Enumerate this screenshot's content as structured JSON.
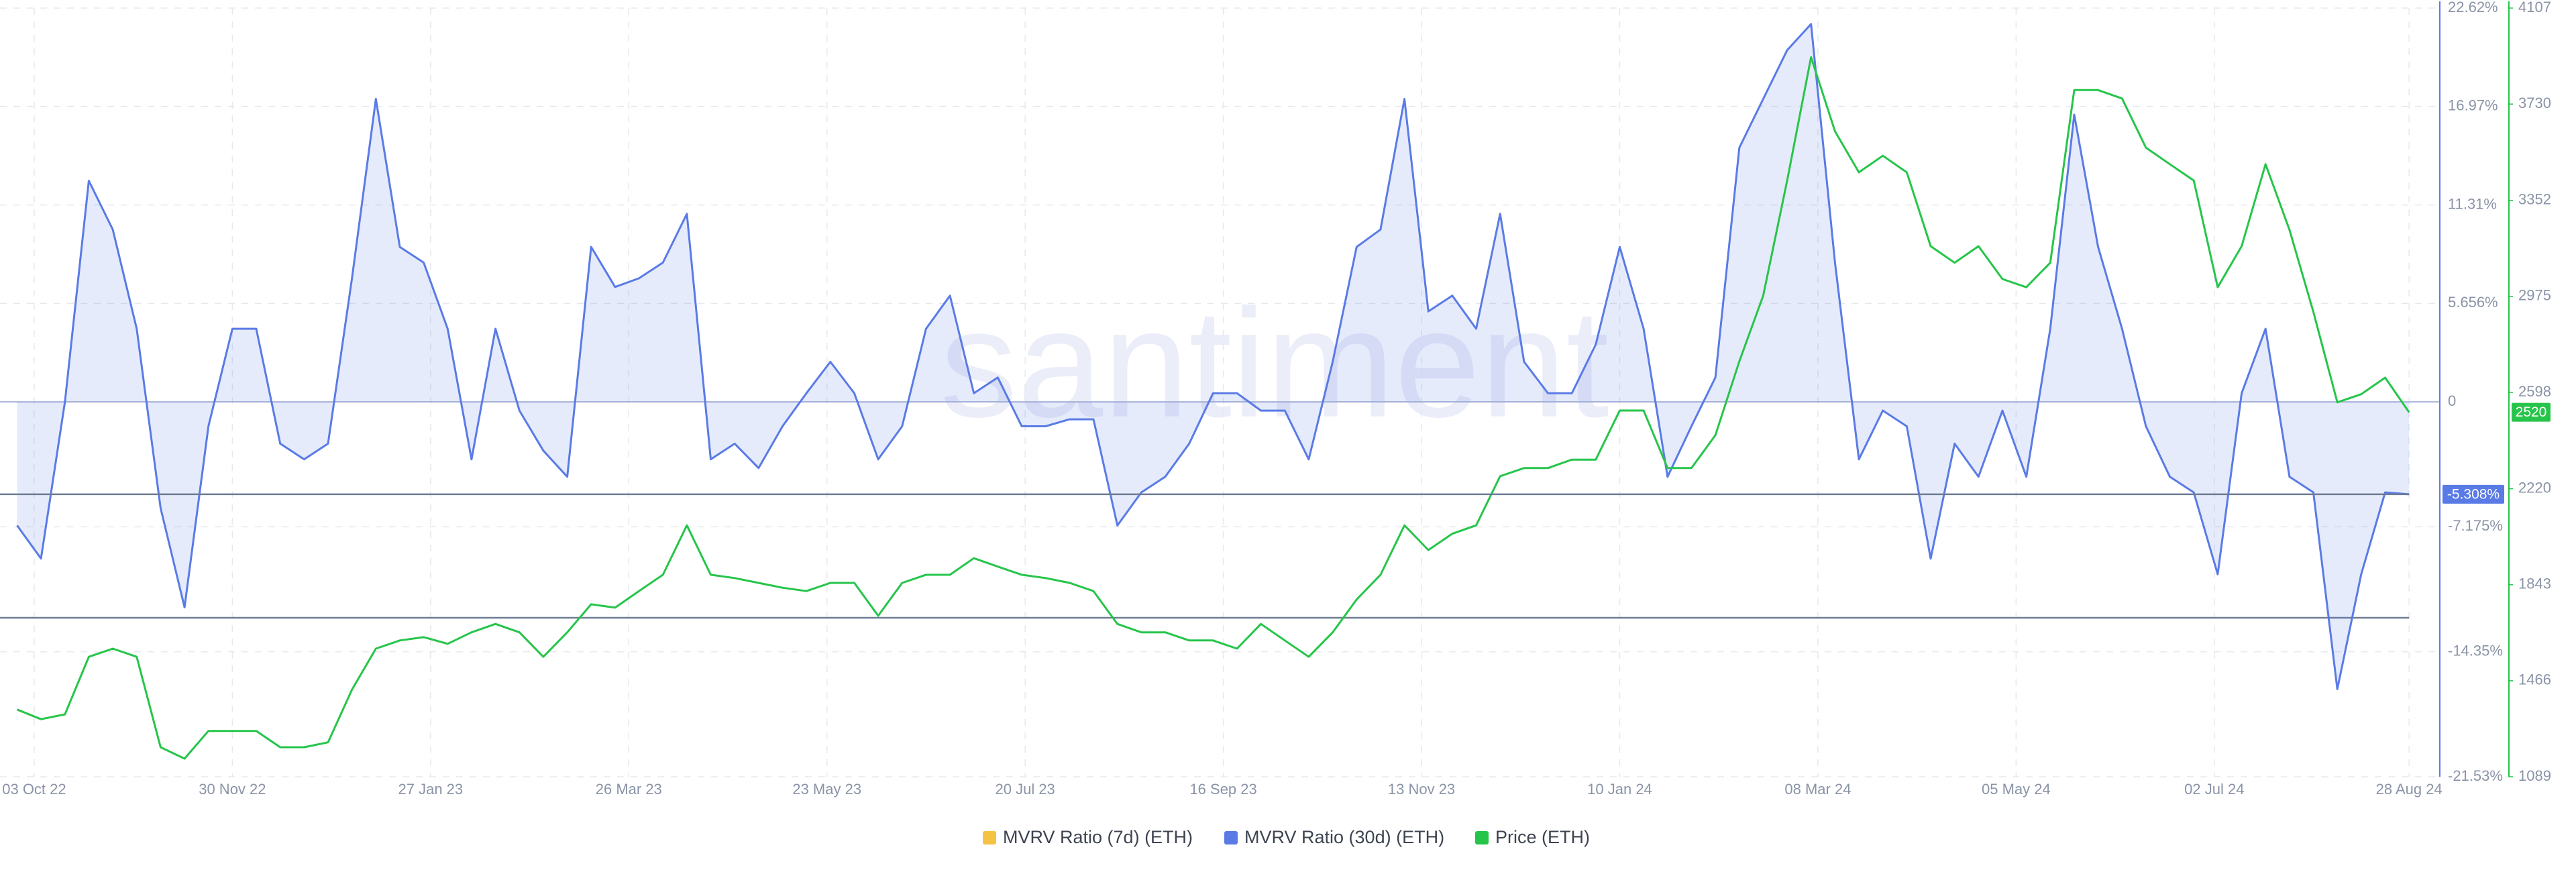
{
  "chart_data": {
    "type": "line",
    "watermark": "santiment",
    "x": [
      "2022-09-28",
      "2022-10-05",
      "2022-10-12",
      "2022-10-19",
      "2022-10-26",
      "2022-11-02",
      "2022-11-09",
      "2022-11-16",
      "2022-11-23",
      "2022-11-30",
      "2022-12-07",
      "2022-12-14",
      "2022-12-21",
      "2022-12-28",
      "2023-01-04",
      "2023-01-11",
      "2023-01-18",
      "2023-01-25",
      "2023-02-01",
      "2023-02-08",
      "2023-02-15",
      "2023-02-22",
      "2023-03-01",
      "2023-03-08",
      "2023-03-15",
      "2023-03-22",
      "2023-03-29",
      "2023-04-05",
      "2023-04-12",
      "2023-04-19",
      "2023-04-26",
      "2023-05-03",
      "2023-05-10",
      "2023-05-17",
      "2023-05-24",
      "2023-05-31",
      "2023-06-07",
      "2023-06-14",
      "2023-06-21",
      "2023-06-28",
      "2023-07-05",
      "2023-07-12",
      "2023-07-19",
      "2023-07-26",
      "2023-08-02",
      "2023-08-09",
      "2023-08-16",
      "2023-08-23",
      "2023-08-30",
      "2023-09-06",
      "2023-09-13",
      "2023-09-20",
      "2023-09-27",
      "2023-10-04",
      "2023-10-11",
      "2023-10-18",
      "2023-10-25",
      "2023-11-01",
      "2023-11-08",
      "2023-11-15",
      "2023-11-22",
      "2023-11-29",
      "2023-12-06",
      "2023-12-13",
      "2023-12-20",
      "2023-12-27",
      "2024-01-03",
      "2024-01-10",
      "2024-01-17",
      "2024-01-24",
      "2024-01-31",
      "2024-02-07",
      "2024-02-14",
      "2024-02-21",
      "2024-02-28",
      "2024-03-06",
      "2024-03-13",
      "2024-03-20",
      "2024-03-27",
      "2024-04-03",
      "2024-04-10",
      "2024-04-17",
      "2024-04-24",
      "2024-05-01",
      "2024-05-08",
      "2024-05-15",
      "2024-05-22",
      "2024-05-29",
      "2024-06-05",
      "2024-06-12",
      "2024-06-19",
      "2024-06-26",
      "2024-07-03",
      "2024-07-10",
      "2024-07-17",
      "2024-07-24",
      "2024-07-31",
      "2024-08-07",
      "2024-08-14",
      "2024-08-21",
      "2024-08-28"
    ],
    "series": [
      {
        "name": "MVRV Ratio (7d) (ETH)",
        "color": "#f5c344",
        "values": [
          null,
          null,
          null,
          null,
          null,
          null,
          null,
          null,
          null,
          null,
          null,
          null,
          null,
          null,
          null,
          null,
          null,
          null,
          null,
          null,
          null,
          null,
          null,
          null,
          null,
          null,
          null,
          null,
          null,
          null,
          null,
          null,
          null,
          null,
          null,
          null,
          null,
          null,
          null,
          null,
          null,
          null,
          null,
          null,
          null,
          null,
          null,
          null,
          null,
          null,
          null,
          null,
          null,
          null,
          null,
          null,
          null,
          null,
          null,
          null,
          null,
          null,
          null,
          null,
          null,
          null,
          null,
          null,
          null,
          null,
          null,
          null,
          null,
          null,
          null,
          null,
          null,
          null,
          null,
          null,
          null,
          null,
          null,
          null,
          null,
          null,
          null,
          null,
          null,
          null,
          null,
          null,
          null,
          null,
          null,
          null,
          null,
          null,
          null,
          null,
          null
        ]
      },
      {
        "name": "MVRV Ratio (30d) (ETH)",
        "color": "#5a7be6",
        "values": [
          -7.1,
          -9.0,
          0.0,
          12.7,
          9.9,
          4.2,
          -6.1,
          -11.8,
          -1.4,
          4.2,
          4.2,
          -2.4,
          -3.3,
          -2.4,
          7.1,
          17.4,
          8.9,
          8.0,
          4.2,
          -3.3,
          4.2,
          -0.5,
          -2.8,
          -4.3,
          8.9,
          6.6,
          7.1,
          8.0,
          10.8,
          -3.3,
          -2.4,
          -3.8,
          -1.4,
          0.5,
          2.3,
          0.5,
          -3.3,
          -1.4,
          4.2,
          6.1,
          0.5,
          1.4,
          -1.4,
          -1.4,
          -1.0,
          -1.0,
          -7.1,
          -5.2,
          -4.3,
          -2.4,
          0.5,
          0.5,
          -0.5,
          -0.5,
          -3.3,
          2.3,
          8.9,
          9.9,
          17.4,
          5.2,
          6.1,
          4.2,
          10.8,
          2.3,
          0.5,
          0.5,
          3.3,
          8.9,
          4.2,
          -4.3,
          -1.4,
          1.4,
          14.6,
          17.4,
          20.2,
          21.7,
          8.0,
          -3.3,
          -0.5,
          -1.4,
          -9.0,
          -2.4,
          -4.3,
          -0.5,
          -4.3,
          4.2,
          16.5,
          8.9,
          4.2,
          -1.4,
          -4.3,
          -5.2,
          -9.9,
          0.5,
          4.2,
          -4.3,
          -5.2,
          -16.5,
          -9.9,
          -5.2,
          -5.308
        ]
      },
      {
        "name": "Price (ETH)",
        "color": "#26c54a",
        "axis": "y2",
        "values": [
          1353,
          1315,
          1334,
          1560,
          1592,
          1560,
          1205,
          1160,
          1269,
          1269,
          1269,
          1205,
          1205,
          1224,
          1431,
          1592,
          1624,
          1637,
          1611,
          1656,
          1689,
          1656,
          1560,
          1656,
          1766,
          1753,
          1818,
          1882,
          2076,
          1882,
          1869,
          1850,
          1831,
          1818,
          1850,
          1850,
          1721,
          1850,
          1882,
          1882,
          1947,
          1914,
          1882,
          1869,
          1850,
          1818,
          1689,
          1656,
          1656,
          1624,
          1624,
          1592,
          1689,
          1624,
          1560,
          1656,
          1785,
          1882,
          2076,
          1979,
          2043,
          2076,
          2269,
          2301,
          2301,
          2334,
          2334,
          2527,
          2527,
          2301,
          2301,
          2430,
          2720,
          2978,
          3430,
          3914,
          3623,
          3462,
          3527,
          3462,
          3172,
          3107,
          3172,
          3043,
          3011,
          3107,
          3785,
          3785,
          3752,
          3559,
          3494,
          3430,
          3011,
          3172,
          3494,
          3236,
          2914,
          2559,
          2591,
          2656,
          2520
        ]
      }
    ],
    "xlim": [
      "2022-09-23",
      "2024-09-06"
    ],
    "xticks": [
      {
        "value": "2022-10-03",
        "label": "03 Oct 22"
      },
      {
        "value": "2022-11-30",
        "label": "30 Nov 22"
      },
      {
        "value": "2023-01-27",
        "label": "27 Jan 23"
      },
      {
        "value": "2023-03-26",
        "label": "26 Mar 23"
      },
      {
        "value": "2023-05-23",
        "label": "23 May 23"
      },
      {
        "value": "2023-07-20",
        "label": "20 Jul 23"
      },
      {
        "value": "2023-09-16",
        "label": "16 Sep 23"
      },
      {
        "value": "2023-11-13",
        "label": "13 Nov 23"
      },
      {
        "value": "2024-01-10",
        "label": "10 Jan 24"
      },
      {
        "value": "2024-03-08",
        "label": "08 Mar 24"
      },
      {
        "value": "2024-05-05",
        "label": "05 May 24"
      },
      {
        "value": "2024-07-02",
        "label": "02 Jul 24"
      },
      {
        "value": "2024-08-28",
        "label": "28 Aug 24"
      }
    ],
    "ylim": [
      -21.53,
      22.62
    ],
    "yticks": [
      {
        "value": 22.62,
        "label": "22.62%"
      },
      {
        "value": 16.97,
        "label": "16.97%"
      },
      {
        "value": 11.31,
        "label": "11.31%"
      },
      {
        "value": 5.656,
        "label": "5.656%"
      },
      0,
      {
        "value": -7.175,
        "label": "-7.175%"
      },
      {
        "value": -14.35,
        "label": "-14.35%"
      },
      {
        "value": -21.53,
        "label": "-21.53%"
      }
    ],
    "y2lim": [
      1089,
      4107
    ],
    "y2ticks": [
      4107,
      3730,
      3352,
      2975,
      2598,
      2220,
      1843,
      1466,
      1089
    ],
    "mvrv_badge": {
      "value": -5.308,
      "label": "-5.308%"
    },
    "price_badge": 2520,
    "reference_lines": [
      -12.4
    ],
    "grid": true,
    "legend": "bottom"
  }
}
